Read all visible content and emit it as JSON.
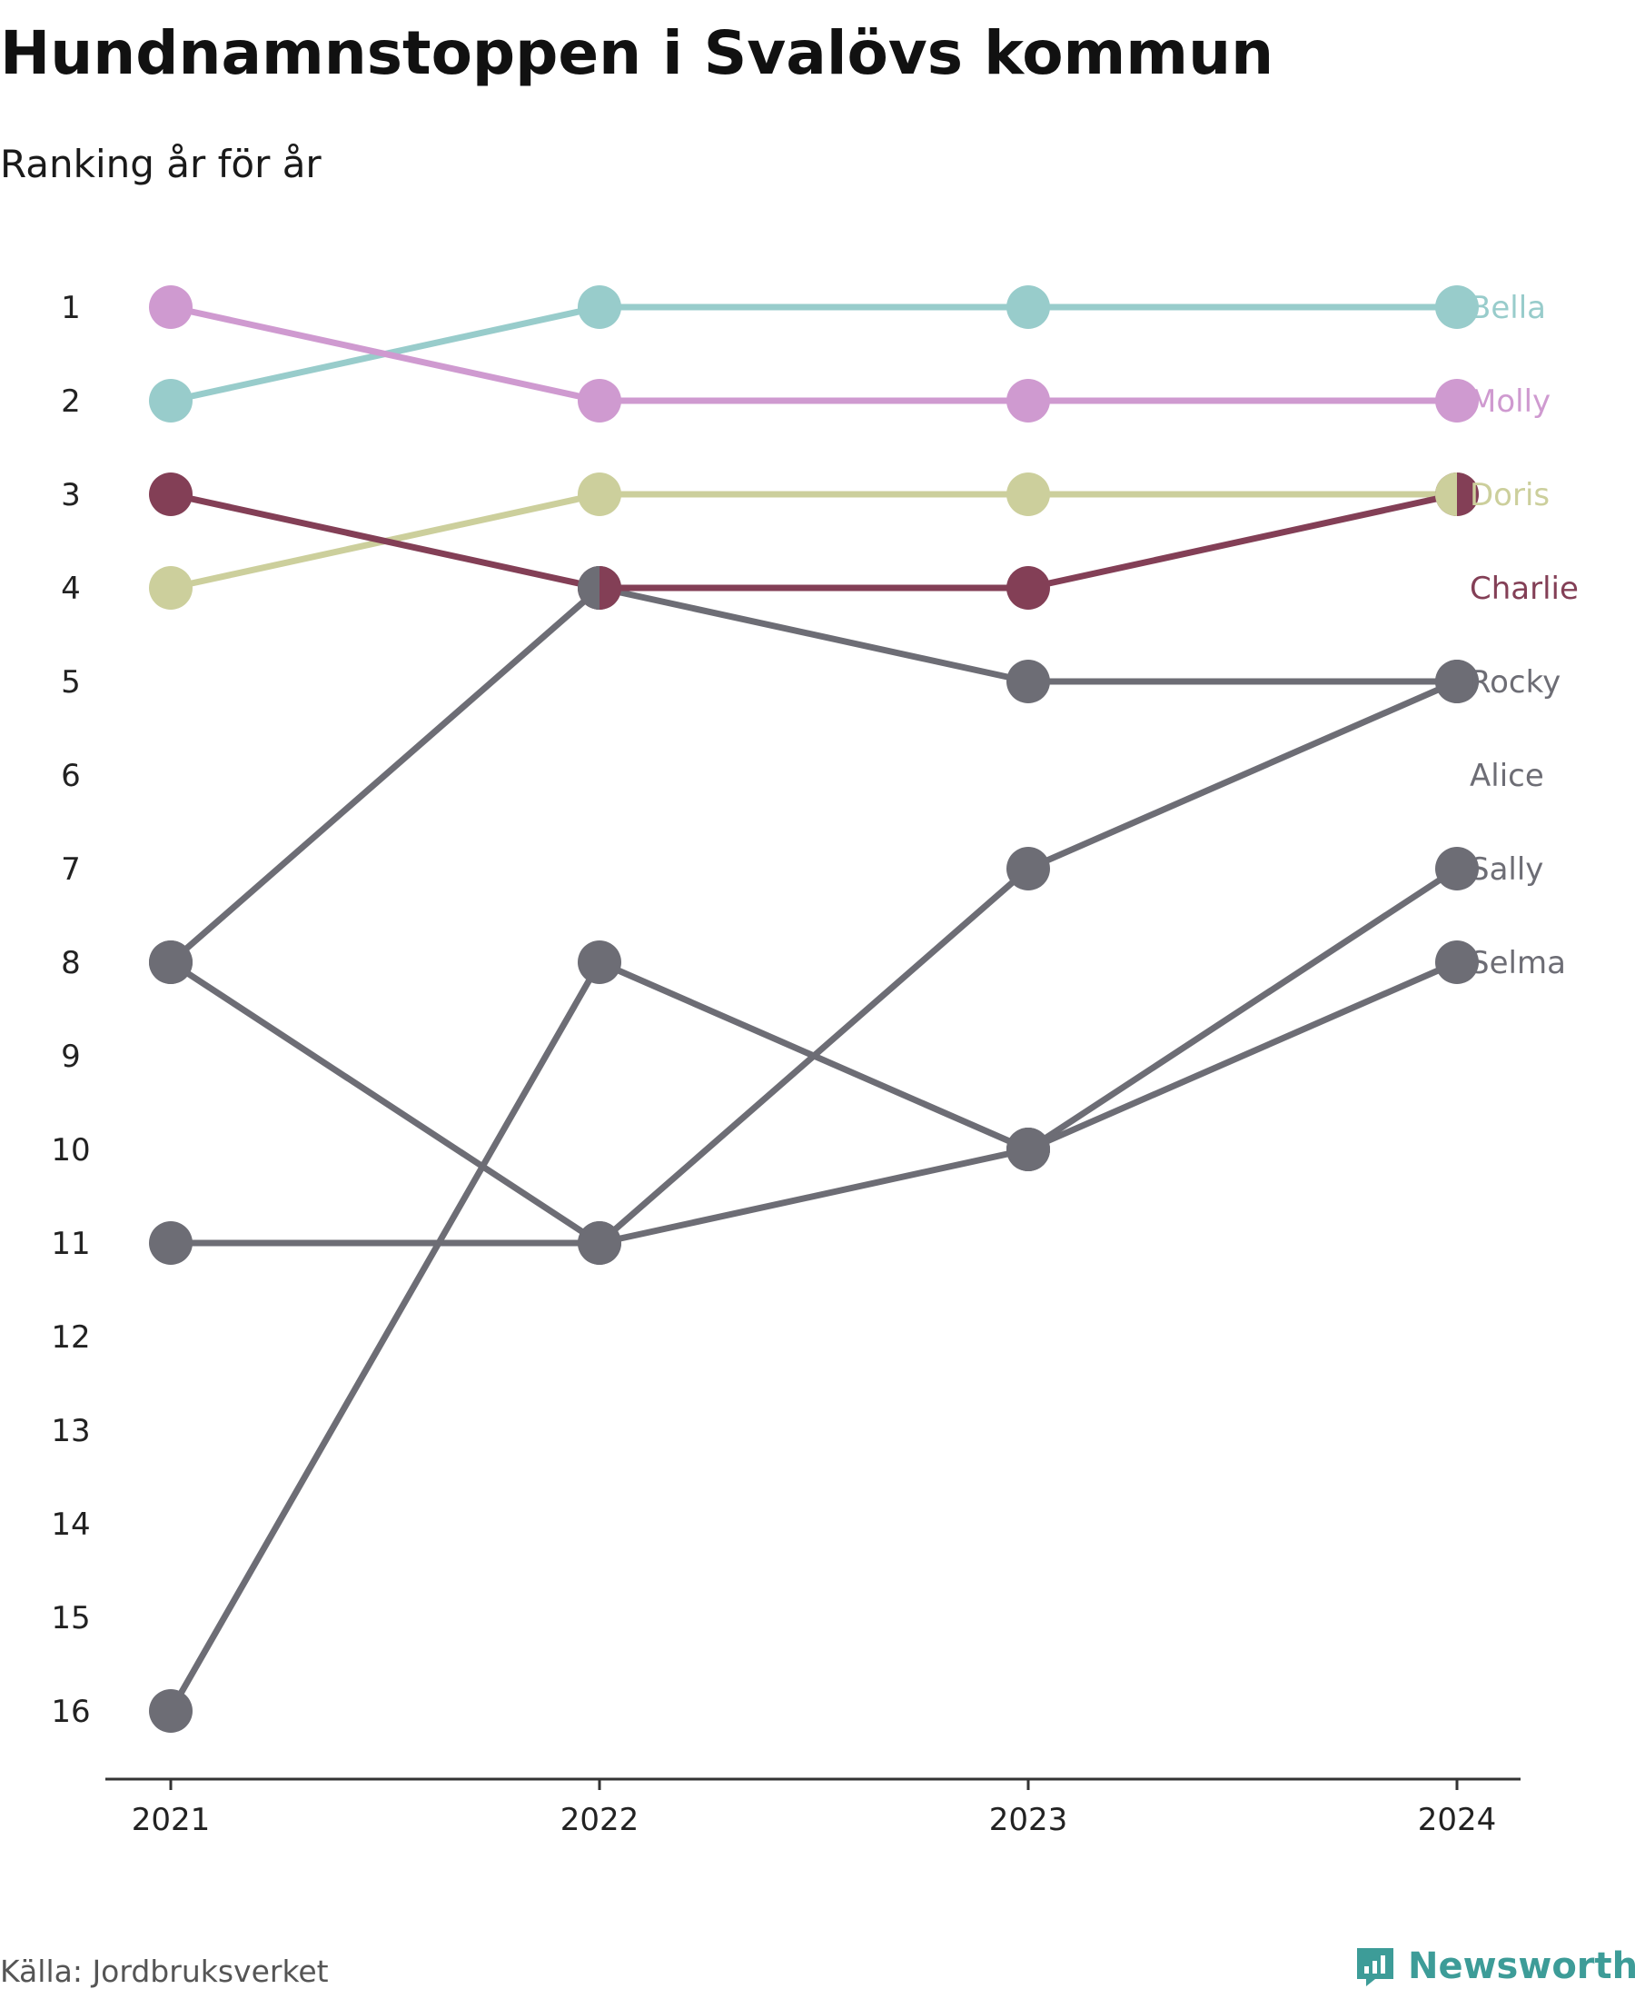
{
  "title": "Hundnamnstoppen i Svalövs kommun",
  "subtitle": "Ranking år för år",
  "source": "Källa: Jordbruksverket",
  "brand": "Newsworthy",
  "chart_data": {
    "type": "line",
    "subtype": "bump",
    "x": [
      "2021",
      "2022",
      "2023",
      "2024"
    ],
    "y_ticks": [
      "1",
      "2",
      "3",
      "4",
      "5",
      "6",
      "7",
      "8",
      "9",
      "10",
      "11",
      "12",
      "13",
      "14",
      "15",
      "16"
    ],
    "ylim": [
      1,
      16
    ],
    "y_inverted": true,
    "grid": false,
    "legend": "labels at right end of lines",
    "series": [
      {
        "name": "Bella",
        "values": [
          2,
          1,
          1,
          1
        ],
        "color": "#98cccb"
      },
      {
        "name": "Molly",
        "values": [
          1,
          2,
          2,
          2
        ],
        "color": "#cf9ad0"
      },
      {
        "name": "Doris",
        "values": [
          4,
          3,
          3,
          3
        ],
        "color": "#cccf9c"
      },
      {
        "name": "Charlie",
        "values": [
          3,
          4,
          4,
          3
        ],
        "color": "#833f56"
      },
      {
        "name": "Rocky",
        "values": [
          8,
          4,
          5,
          5
        ],
        "color": "#6d6d75"
      },
      {
        "name": "Alice",
        "values": [
          16,
          8,
          10,
          null
        ],
        "color": "#6d6d75"
      },
      {
        "name": "Sally",
        "values": [
          11,
          11,
          10,
          7
        ],
        "color": "#6d6d75"
      },
      {
        "name": "Selma",
        "values": [
          8,
          11,
          7,
          5
        ],
        "color": "#6d6d75"
      },
      {
        "name": "",
        "values": [
          null,
          null,
          10,
          8
        ],
        "color": "#6d6d75"
      }
    ]
  }
}
